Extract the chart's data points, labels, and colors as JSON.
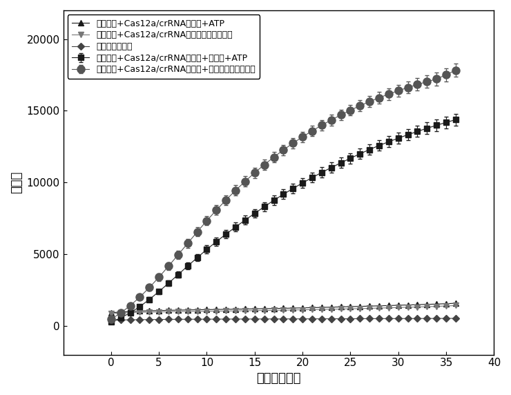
{
  "title": "",
  "xlabel": "时间（分钟）",
  "ylabel": "荧光值",
  "xlim": [
    -5,
    40
  ],
  "ylim": [
    -2000,
    22000
  ],
  "xticks": [
    0,
    5,
    10,
    15,
    20,
    25,
    30,
    35,
    40
  ],
  "yticks": [
    0,
    5000,
    10000,
    15000,
    20000
  ],
  "series": [
    {
      "label": "荧光探针+Cas12a/crRNA复合物+适配体+ATP",
      "marker": "s",
      "color": "#1a1a1a",
      "markersize": 6,
      "linestyle": "-",
      "linewidth": 0.8,
      "has_errorbar": true,
      "time": [
        0,
        1,
        2,
        3,
        4,
        5,
        6,
        7,
        8,
        9,
        10,
        11,
        12,
        13,
        14,
        15,
        16,
        17,
        18,
        19,
        20,
        21,
        22,
        23,
        24,
        25,
        26,
        27,
        28,
        29,
        30,
        31,
        32,
        33,
        34,
        35,
        36
      ],
      "values": [
        280,
        560,
        920,
        1350,
        1850,
        2400,
        2980,
        3580,
        4180,
        4760,
        5340,
        5880,
        6400,
        6900,
        7380,
        7850,
        8310,
        8760,
        9180,
        9580,
        9970,
        10340,
        10700,
        11040,
        11370,
        11690,
        12000,
        12300,
        12580,
        12840,
        13090,
        13330,
        13560,
        13780,
        13990,
        14190,
        14380
      ],
      "errors": [
        80,
        90,
        110,
        130,
        150,
        170,
        190,
        210,
        230,
        250,
        270,
        290,
        300,
        300,
        310,
        310,
        320,
        320,
        330,
        330,
        340,
        340,
        350,
        350,
        360,
        360,
        360,
        370,
        370,
        380,
        380,
        390,
        390,
        400,
        400,
        410,
        420
      ]
    },
    {
      "label": "荧光探针+Cas12a/crRNA复合物+适配体（阳性对照）",
      "marker": "o",
      "color": "#555555",
      "markersize": 8,
      "linestyle": "-",
      "linewidth": 0.8,
      "has_errorbar": true,
      "time": [
        0,
        1,
        2,
        3,
        4,
        5,
        6,
        7,
        8,
        9,
        10,
        11,
        12,
        13,
        14,
        15,
        16,
        17,
        18,
        19,
        20,
        21,
        22,
        23,
        24,
        25,
        26,
        27,
        28,
        29,
        30,
        31,
        32,
        33,
        34,
        35,
        36
      ],
      "values": [
        480,
        900,
        1420,
        2010,
        2680,
        3400,
        4170,
        4960,
        5760,
        6560,
        7340,
        8080,
        8780,
        9450,
        10080,
        10680,
        11240,
        11770,
        12270,
        12740,
        13180,
        13600,
        13990,
        14360,
        14710,
        15040,
        15350,
        15640,
        15910,
        16160,
        16400,
        16620,
        16830,
        17030,
        17220,
        17510,
        17830
      ],
      "errors": [
        100,
        130,
        160,
        190,
        220,
        250,
        270,
        290,
        310,
        320,
        330,
        340,
        340,
        350,
        350,
        360,
        360,
        360,
        360,
        370,
        370,
        370,
        370,
        380,
        380,
        380,
        390,
        390,
        400,
        400,
        410,
        420,
        430,
        440,
        450,
        460,
        470
      ]
    },
    {
      "label": "荧光探针+Cas12a/crRNA复合物+ATP",
      "marker": "^",
      "color": "#1a1a1a",
      "markersize": 6,
      "linestyle": "-",
      "linewidth": 0.8,
      "has_errorbar": false,
      "time": [
        0,
        1,
        2,
        3,
        4,
        5,
        6,
        7,
        8,
        9,
        10,
        11,
        12,
        13,
        14,
        15,
        16,
        17,
        18,
        19,
        20,
        21,
        22,
        23,
        24,
        25,
        26,
        27,
        28,
        29,
        30,
        31,
        32,
        33,
        34,
        35,
        36
      ],
      "values": [
        920,
        980,
        1010,
        1040,
        1060,
        1075,
        1090,
        1105,
        1118,
        1130,
        1140,
        1150,
        1160,
        1170,
        1182,
        1194,
        1206,
        1218,
        1232,
        1248,
        1263,
        1278,
        1294,
        1311,
        1328,
        1347,
        1366,
        1385,
        1404,
        1424,
        1444,
        1465,
        1486,
        1507,
        1528,
        1555,
        1585
      ],
      "errors": []
    },
    {
      "label": "荧光探针+Cas12a/crRNA复合物（阴性对照）",
      "marker": "v",
      "color": "#777777",
      "markersize": 6,
      "linestyle": "-",
      "linewidth": 0.8,
      "has_errorbar": false,
      "time": [
        0,
        1,
        2,
        3,
        4,
        5,
        6,
        7,
        8,
        9,
        10,
        11,
        12,
        13,
        14,
        15,
        16,
        17,
        18,
        19,
        20,
        21,
        22,
        23,
        24,
        25,
        26,
        27,
        28,
        29,
        30,
        31,
        32,
        33,
        34,
        35,
        36
      ],
      "values": [
        860,
        900,
        930,
        950,
        965,
        978,
        990,
        1000,
        1010,
        1018,
        1026,
        1034,
        1042,
        1052,
        1062,
        1072,
        1082,
        1092,
        1104,
        1116,
        1128,
        1141,
        1154,
        1168,
        1183,
        1198,
        1214,
        1232,
        1249,
        1267,
        1285,
        1305,
        1325,
        1346,
        1368,
        1395,
        1425
      ],
      "errors": []
    },
    {
      "label": "荧光探针水溶液",
      "marker": "D",
      "color": "#444444",
      "markersize": 5,
      "linestyle": "-",
      "linewidth": 0.8,
      "has_errorbar": false,
      "time": [
        0,
        1,
        2,
        3,
        4,
        5,
        6,
        7,
        8,
        9,
        10,
        11,
        12,
        13,
        14,
        15,
        16,
        17,
        18,
        19,
        20,
        21,
        22,
        23,
        24,
        25,
        26,
        27,
        28,
        29,
        30,
        31,
        32,
        33,
        34,
        35,
        36
      ],
      "values": [
        390,
        415,
        430,
        440,
        448,
        455,
        460,
        464,
        468,
        471,
        474,
        477,
        480,
        482,
        484,
        486,
        488,
        490,
        492,
        494,
        496,
        498,
        500,
        502,
        504,
        506,
        508,
        510,
        512,
        514,
        516,
        518,
        520,
        522,
        524,
        526,
        530
      ],
      "errors": []
    }
  ],
  "legend_loc": "upper left",
  "legend_fontsize": 9,
  "axis_fontsize": 13,
  "tick_fontsize": 11,
  "background_color": "#ffffff"
}
